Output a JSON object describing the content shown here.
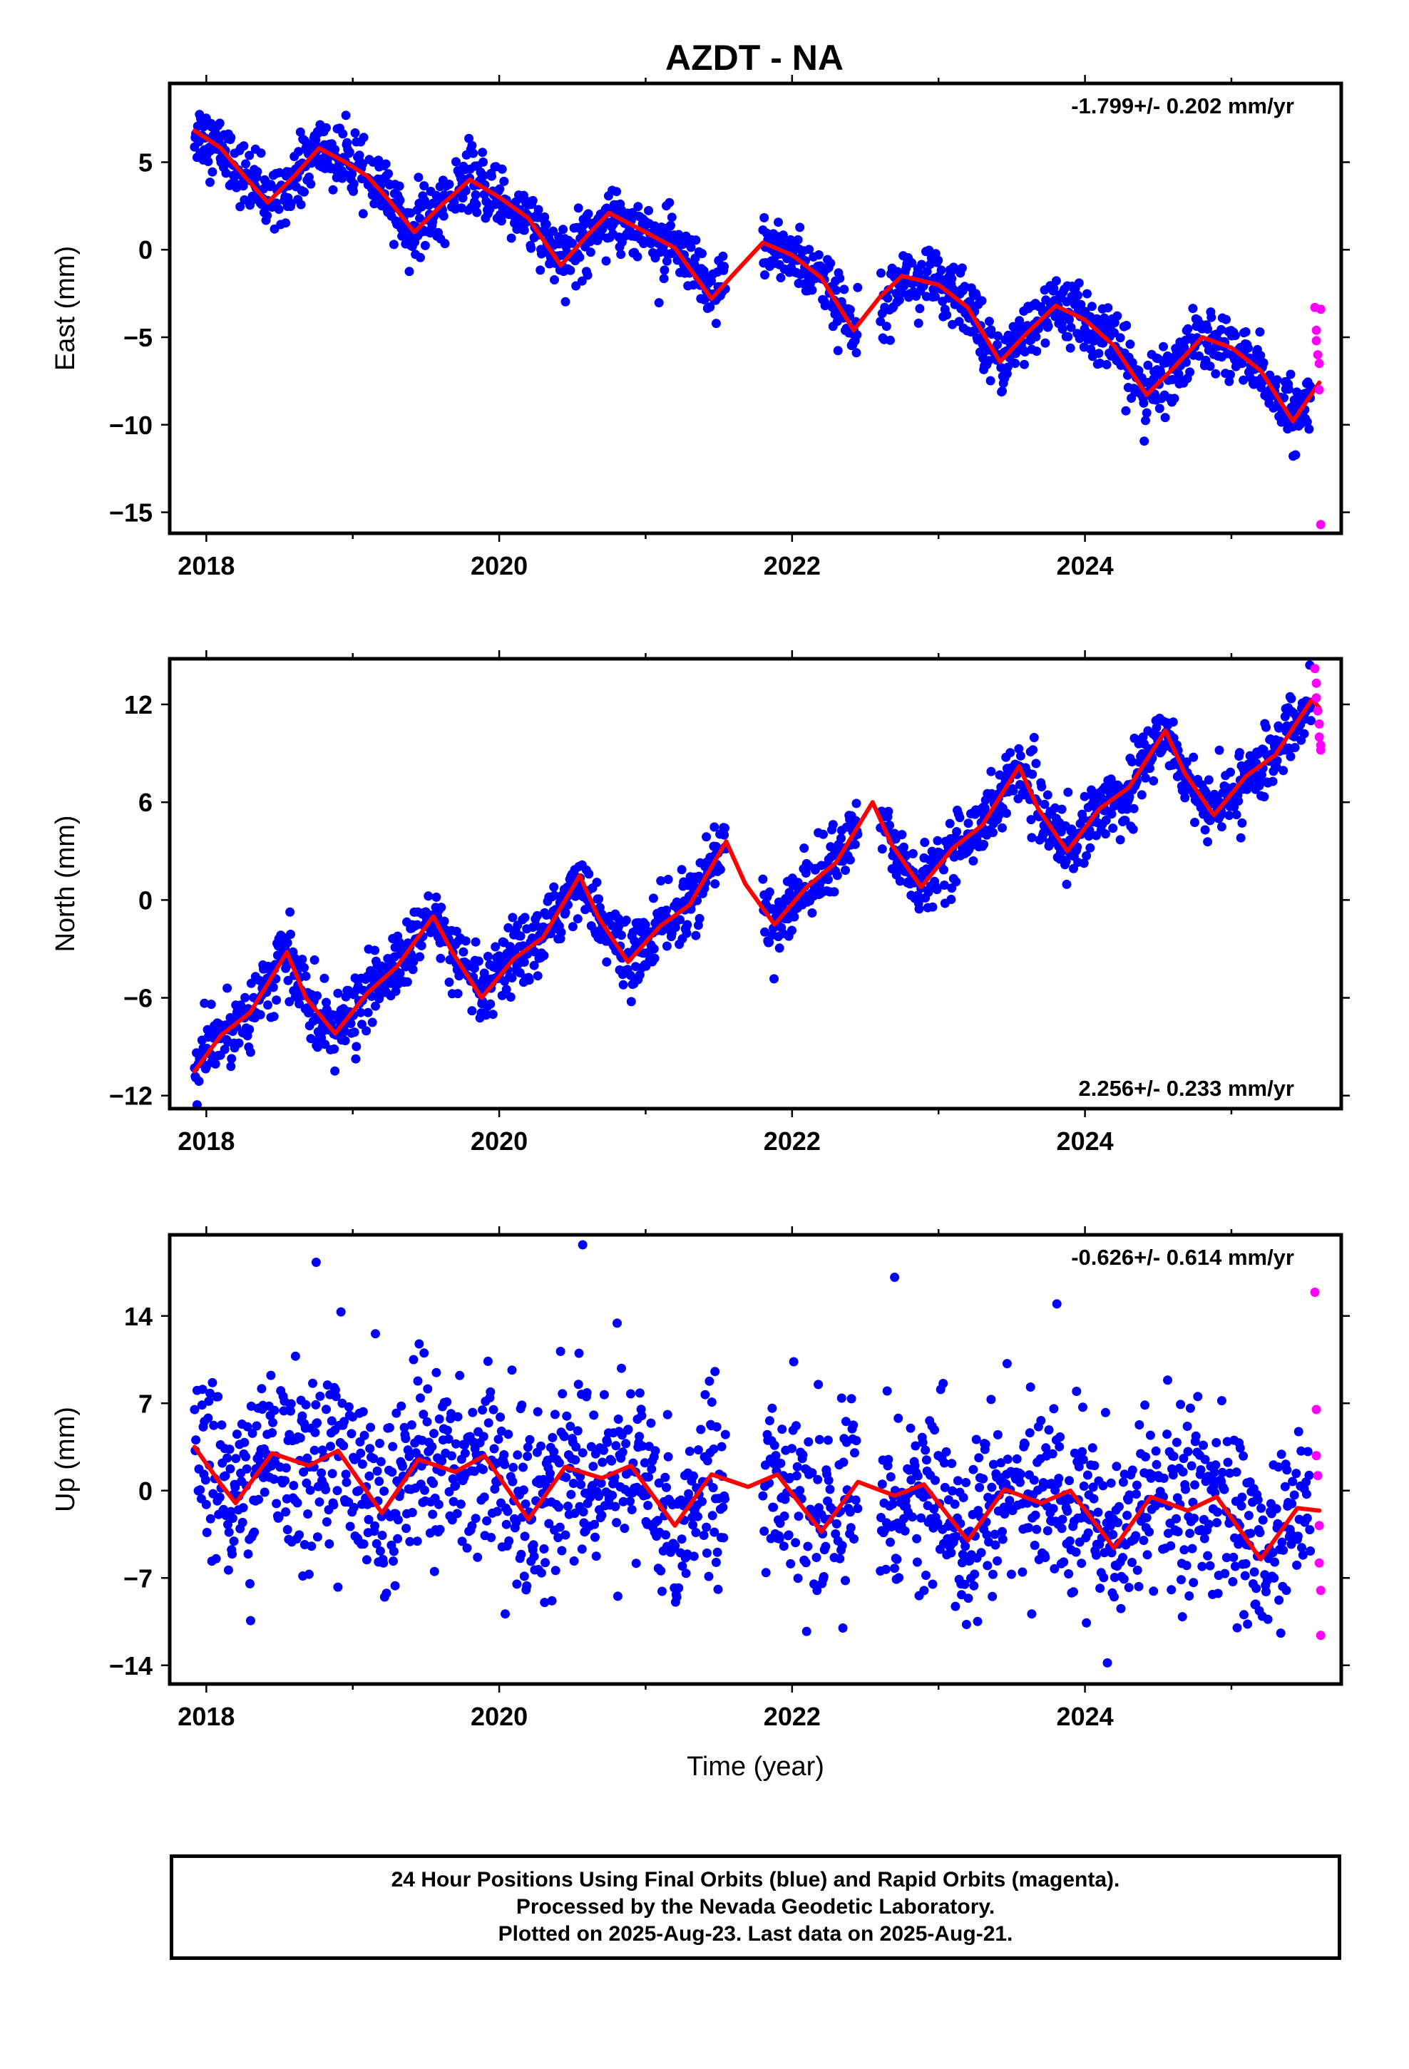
{
  "figure_title": "AZDT - NA",
  "colors": {
    "final_orbits": "#0000ff",
    "rapid_orbits": "#ff00ff",
    "model_fit": "#ff0000",
    "frame": "#000000"
  },
  "footer": {
    "line1": "24 Hour Positions Using Final Orbits (blue) and Rapid Orbits (magenta).",
    "line2": "Processed by the Nevada Geodetic Laboratory.",
    "line3": "Plotted on 2025-Aug-23. Last data on 2025-Aug-21."
  },
  "chart_data": [
    {
      "type": "scatter",
      "title": "AZDT - NA",
      "xlabel": "",
      "ylabel": "East (mm)",
      "rate_label": "-1.799+/- 0.202 mm/yr",
      "rate_position": "top-right",
      "xlim": [
        2017.75,
        2025.75
      ],
      "ylim": [
        -16.2,
        9.5
      ],
      "x_ticks": [
        2018,
        2020,
        2022,
        2024
      ],
      "x_tick_labels": [
        "2018",
        "2020",
        "2022",
        "2024"
      ],
      "y_ticks": [
        5,
        0,
        -5,
        -10,
        -15
      ],
      "y_tick_labels": [
        "5",
        "0",
        "−5",
        "−10",
        "−15"
      ],
      "grid": false,
      "fit_curve": {
        "x": [
          2017.92,
          2018.1,
          2018.25,
          2018.42,
          2018.6,
          2018.77,
          2018.95,
          2019.1,
          2019.25,
          2019.42,
          2019.6,
          2019.8,
          2020.0,
          2020.2,
          2020.42,
          2020.6,
          2020.75,
          2021.0,
          2021.2,
          2021.45,
          2021.6,
          2021.8,
          2022.0,
          2022.2,
          2022.42,
          2022.6,
          2022.75,
          2023.0,
          2023.2,
          2023.42,
          2023.6,
          2023.8,
          2024.0,
          2024.2,
          2024.42,
          2024.6,
          2024.8,
          2025.0,
          2025.2,
          2025.42,
          2025.6
        ],
        "y": [
          6.8,
          5.8,
          4.3,
          2.7,
          4.2,
          5.8,
          5.0,
          4.2,
          2.8,
          1.0,
          2.5,
          4.0,
          3.0,
          1.8,
          -0.9,
          0.8,
          2.1,
          1.0,
          0.1,
          -2.8,
          -1.4,
          0.4,
          -0.3,
          -1.6,
          -4.6,
          -2.7,
          -1.5,
          -2.0,
          -3.3,
          -6.4,
          -4.8,
          -3.2,
          -4.0,
          -5.5,
          -8.3,
          -6.8,
          -5.0,
          -5.6,
          -6.9,
          -9.8,
          -7.6
        ]
      },
      "rapid_orbits": {
        "x": [
          2025.57,
          2025.58,
          2025.58,
          2025.59,
          2025.6,
          2025.6,
          2025.61,
          2025.61
        ],
        "y": [
          -3.3,
          -4.6,
          -5.2,
          -6.0,
          -6.5,
          -8.0,
          -3.4,
          -15.7
        ]
      }
    },
    {
      "type": "scatter",
      "xlabel": "",
      "ylabel": "North (mm)",
      "rate_label": "2.256+/- 0.233 mm/yr",
      "rate_position": "bottom-right",
      "xlim": [
        2017.75,
        2025.75
      ],
      "ylim": [
        -12.8,
        14.8
      ],
      "x_ticks": [
        2018,
        2020,
        2022,
        2024
      ],
      "x_tick_labels": [
        "2018",
        "2020",
        "2022",
        "2024"
      ],
      "y_ticks": [
        12,
        6,
        0,
        -6,
        -12
      ],
      "y_tick_labels": [
        "12",
        "6",
        "0",
        "−6",
        "−12"
      ],
      "grid": false,
      "fit_curve": {
        "x": [
          2017.92,
          2018.1,
          2018.3,
          2018.55,
          2018.68,
          2018.88,
          2019.1,
          2019.3,
          2019.55,
          2019.68,
          2019.88,
          2020.1,
          2020.3,
          2020.55,
          2020.68,
          2020.88,
          2021.1,
          2021.3,
          2021.55,
          2021.68,
          2021.88,
          2022.1,
          2022.3,
          2022.55,
          2022.68,
          2022.88,
          2023.1,
          2023.3,
          2023.55,
          2023.68,
          2023.88,
          2024.1,
          2024.3,
          2024.55,
          2024.68,
          2024.88,
          2025.1,
          2025.3,
          2025.55,
          2025.6
        ],
        "y": [
          -10.5,
          -8.3,
          -6.9,
          -3.2,
          -6.0,
          -8.2,
          -5.7,
          -4.1,
          -1.0,
          -3.2,
          -6.0,
          -3.6,
          -2.3,
          1.5,
          -1.1,
          -3.8,
          -1.6,
          -0.3,
          3.6,
          1.0,
          -1.5,
          0.8,
          2.3,
          6.0,
          3.4,
          0.8,
          3.2,
          4.6,
          8.2,
          5.6,
          3.0,
          5.6,
          6.9,
          10.4,
          7.8,
          5.2,
          7.6,
          8.9,
          12.3,
          11.8
        ]
      },
      "rapid_orbits": {
        "x": [
          2025.57,
          2025.58,
          2025.58,
          2025.59,
          2025.6,
          2025.6,
          2025.61,
          2025.61
        ],
        "y": [
          14.2,
          13.3,
          12.4,
          11.6,
          10.8,
          10.0,
          9.5,
          9.2
        ]
      }
    },
    {
      "type": "scatter",
      "xlabel": "Time (year)",
      "ylabel": "Up (mm)",
      "rate_label": "-0.626+/- 0.614 mm/yr",
      "rate_position": "top-right",
      "xlim": [
        2017.75,
        2025.75
      ],
      "ylim": [
        -15.5,
        20.5
      ],
      "x_ticks": [
        2018,
        2020,
        2022,
        2024
      ],
      "x_tick_labels": [
        "2018",
        "2020",
        "2022",
        "2024"
      ],
      "y_ticks": [
        14,
        7,
        0,
        -7,
        -14
      ],
      "y_tick_labels": [
        "14",
        "7",
        "0",
        "−7",
        "−14"
      ],
      "grid": false,
      "fit_curve": {
        "x": [
          2017.92,
          2018.1,
          2018.2,
          2018.45,
          2018.7,
          2018.9,
          2019.2,
          2019.45,
          2019.7,
          2019.9,
          2020.2,
          2020.45,
          2020.7,
          2020.9,
          2021.2,
          2021.45,
          2021.7,
          2021.9,
          2022.2,
          2022.45,
          2022.7,
          2022.9,
          2023.2,
          2023.45,
          2023.7,
          2023.9,
          2024.2,
          2024.45,
          2024.7,
          2024.9,
          2025.2,
          2025.45,
          2025.6
        ],
        "y": [
          3.5,
          0.5,
          -1.0,
          3.0,
          2.0,
          3.2,
          -1.8,
          2.5,
          1.5,
          2.8,
          -2.3,
          1.9,
          1.0,
          2.0,
          -2.8,
          1.3,
          0.3,
          1.3,
          -3.3,
          0.7,
          -0.4,
          0.5,
          -4.0,
          0.1,
          -1.0,
          0.0,
          -4.6,
          -0.5,
          -1.6,
          -0.5,
          -5.5,
          -1.4,
          -1.6
        ]
      },
      "outliers": {
        "x": [
          2018.75,
          2020.57,
          2022.7
        ],
        "y": [
          18.3,
          19.7,
          17.1
        ]
      },
      "rapid_orbits": {
        "x": [
          2025.57,
          2025.58,
          2025.58,
          2025.59,
          2025.6,
          2025.6,
          2025.61,
          2025.61
        ],
        "y": [
          15.9,
          6.5,
          2.8,
          1.2,
          -2.8,
          -5.8,
          -8.0,
          -11.6
        ]
      }
    }
  ]
}
